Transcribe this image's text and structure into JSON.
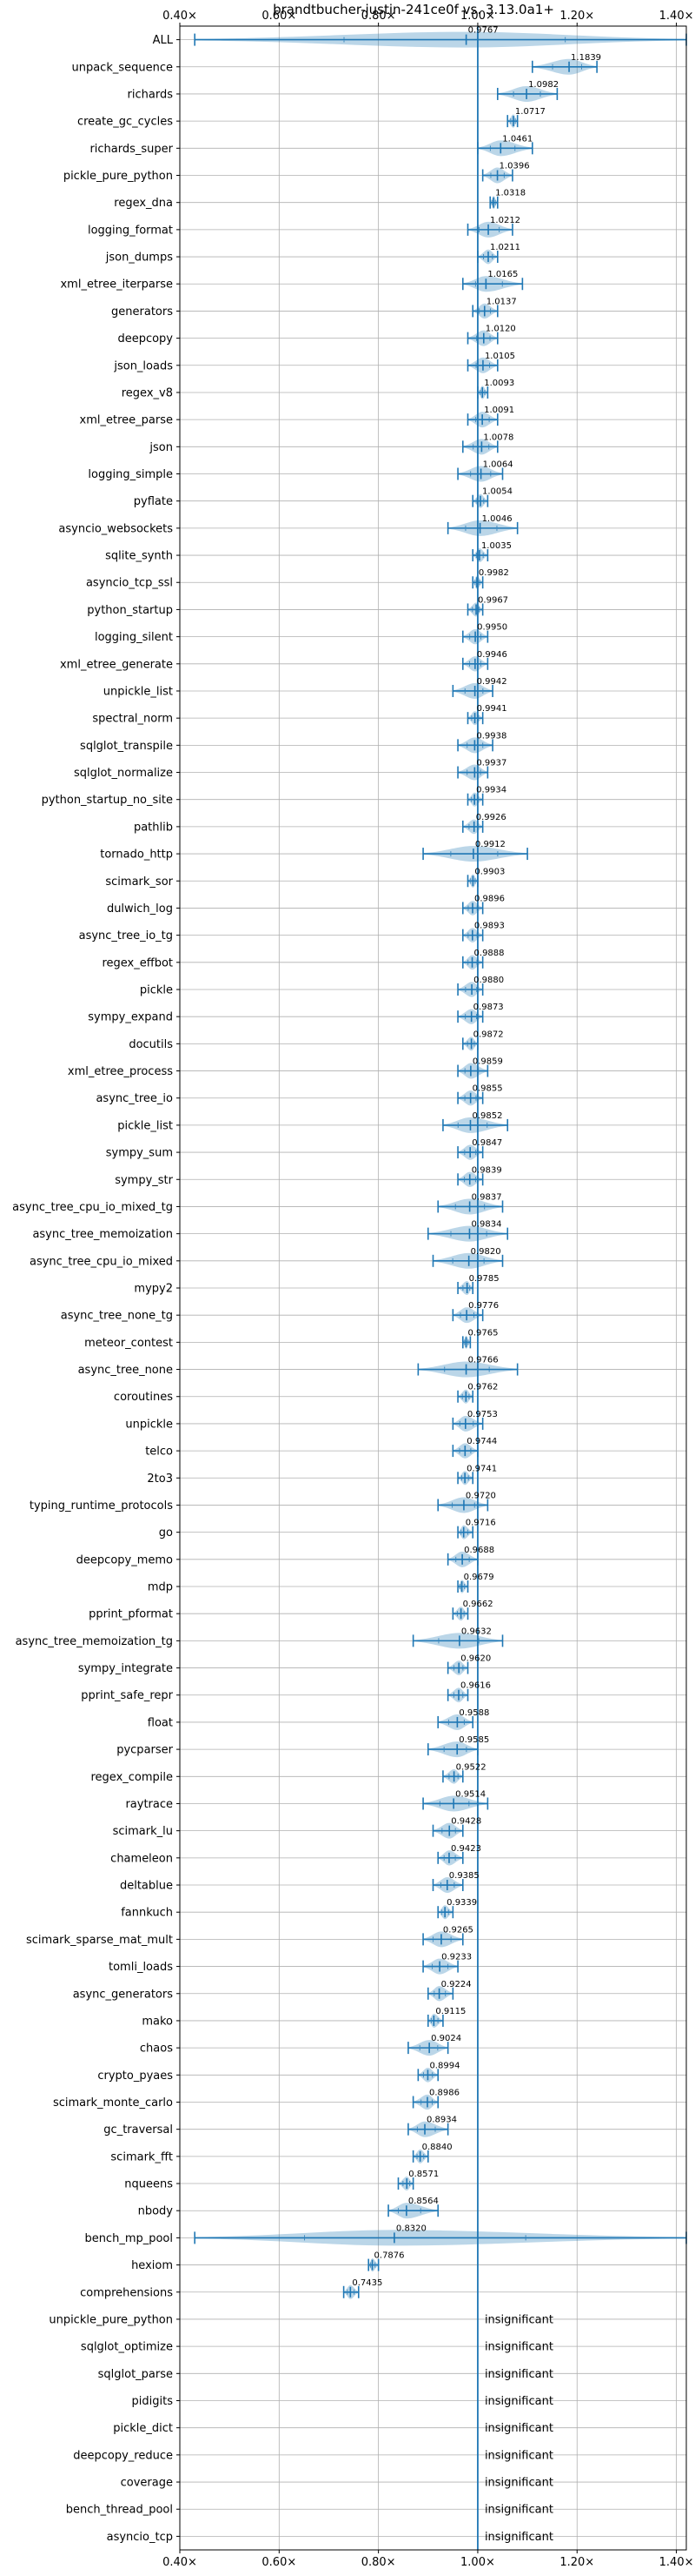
{
  "chart_data": {
    "type": "violin",
    "title": "brandtbucher-justin-241ce0f vs. 3.13.0a1+",
    "xlim": [
      0.4,
      1.42
    ],
    "x_ticks": [
      {
        "value": 0.4,
        "label": "0.40×"
      },
      {
        "value": 0.6,
        "label": "0.60×"
      },
      {
        "value": 0.8,
        "label": "0.80×"
      },
      {
        "value": 1.0,
        "label": "1.00×"
      },
      {
        "value": 1.2,
        "label": "1.20×"
      },
      {
        "value": 1.4,
        "label": "1.40×"
      }
    ],
    "reference_value": 1.0,
    "ref_color": "#1f77b4",
    "insignificant_label": "insignificant",
    "benchmarks": [
      {
        "name": "ALL",
        "value": 0.9767,
        "min": 0.43,
        "max": 1.42,
        "label": "0.9767"
      },
      {
        "name": "unpack_sequence",
        "value": 1.1839,
        "min": 1.11,
        "max": 1.24,
        "label": "1.1839"
      },
      {
        "name": "richards",
        "value": 1.0982,
        "min": 1.04,
        "max": 1.16,
        "label": "1.0982"
      },
      {
        "name": "create_gc_cycles",
        "value": 1.0717,
        "min": 1.06,
        "max": 1.08,
        "label": "1.0717"
      },
      {
        "name": "richards_super",
        "value": 1.0461,
        "min": 1.0,
        "max": 1.11,
        "label": "1.0461"
      },
      {
        "name": "pickle_pure_python",
        "value": 1.0396,
        "min": 1.01,
        "max": 1.07,
        "label": "1.0396"
      },
      {
        "name": "regex_dna",
        "value": 1.0318,
        "min": 1.025,
        "max": 1.04,
        "label": "1.0318"
      },
      {
        "name": "logging_format",
        "value": 1.0212,
        "min": 0.98,
        "max": 1.07,
        "label": "1.0212"
      },
      {
        "name": "json_dumps",
        "value": 1.0211,
        "min": 1.0,
        "max": 1.04,
        "label": "1.0211"
      },
      {
        "name": "xml_etree_iterparse",
        "value": 1.0165,
        "min": 0.97,
        "max": 1.09,
        "label": "1.0165"
      },
      {
        "name": "generators",
        "value": 1.0137,
        "min": 0.99,
        "max": 1.04,
        "label": "1.0137"
      },
      {
        "name": "deepcopy",
        "value": 1.012,
        "min": 0.98,
        "max": 1.04,
        "label": "1.0120"
      },
      {
        "name": "json_loads",
        "value": 1.0105,
        "min": 0.98,
        "max": 1.04,
        "label": "1.0105"
      },
      {
        "name": "regex_v8",
        "value": 1.0093,
        "min": 1.0,
        "max": 1.02,
        "label": "1.0093"
      },
      {
        "name": "xml_etree_parse",
        "value": 1.0091,
        "min": 0.98,
        "max": 1.04,
        "label": "1.0091"
      },
      {
        "name": "json",
        "value": 1.0078,
        "min": 0.97,
        "max": 1.04,
        "label": "1.0078"
      },
      {
        "name": "logging_simple",
        "value": 1.0064,
        "min": 0.96,
        "max": 1.05,
        "label": "1.0064"
      },
      {
        "name": "pyflate",
        "value": 1.0054,
        "min": 0.99,
        "max": 1.02,
        "label": "1.0054"
      },
      {
        "name": "asyncio_websockets",
        "value": 1.0046,
        "min": 0.94,
        "max": 1.08,
        "label": "1.0046"
      },
      {
        "name": "sqlite_synth",
        "value": 1.0035,
        "min": 0.99,
        "max": 1.02,
        "label": "1.0035"
      },
      {
        "name": "asyncio_tcp_ssl",
        "value": 0.9982,
        "min": 0.99,
        "max": 1.01,
        "label": "0.9982"
      },
      {
        "name": "python_startup",
        "value": 0.9967,
        "min": 0.98,
        "max": 1.01,
        "label": "0.9967"
      },
      {
        "name": "logging_silent",
        "value": 0.995,
        "min": 0.97,
        "max": 1.02,
        "label": "0.9950"
      },
      {
        "name": "xml_etree_generate",
        "value": 0.9946,
        "min": 0.97,
        "max": 1.02,
        "label": "0.9946"
      },
      {
        "name": "unpickle_list",
        "value": 0.9942,
        "min": 0.95,
        "max": 1.03,
        "label": "0.9942"
      },
      {
        "name": "spectral_norm",
        "value": 0.9941,
        "min": 0.98,
        "max": 1.01,
        "label": "0.9941"
      },
      {
        "name": "sqlglot_transpile",
        "value": 0.9938,
        "min": 0.96,
        "max": 1.03,
        "label": "0.9938"
      },
      {
        "name": "sqlglot_normalize",
        "value": 0.9937,
        "min": 0.96,
        "max": 1.02,
        "label": "0.9937"
      },
      {
        "name": "python_startup_no_site",
        "value": 0.9934,
        "min": 0.98,
        "max": 1.01,
        "label": "0.9934"
      },
      {
        "name": "pathlib",
        "value": 0.9926,
        "min": 0.97,
        "max": 1.01,
        "label": "0.9926"
      },
      {
        "name": "tornado_http",
        "value": 0.9912,
        "min": 0.89,
        "max": 1.1,
        "label": "0.9912"
      },
      {
        "name": "scimark_sor",
        "value": 0.9903,
        "min": 0.98,
        "max": 1.0,
        "label": "0.9903"
      },
      {
        "name": "dulwich_log",
        "value": 0.9896,
        "min": 0.97,
        "max": 1.01,
        "label": "0.9896"
      },
      {
        "name": "async_tree_io_tg",
        "value": 0.9893,
        "min": 0.97,
        "max": 1.01,
        "label": "0.9893"
      },
      {
        "name": "regex_effbot",
        "value": 0.9888,
        "min": 0.97,
        "max": 1.01,
        "label": "0.9888"
      },
      {
        "name": "pickle",
        "value": 0.988,
        "min": 0.96,
        "max": 1.01,
        "label": "0.9880"
      },
      {
        "name": "sympy_expand",
        "value": 0.9873,
        "min": 0.96,
        "max": 1.01,
        "label": "0.9873"
      },
      {
        "name": "docutils",
        "value": 0.9872,
        "min": 0.97,
        "max": 1.0,
        "label": "0.9872"
      },
      {
        "name": "xml_etree_process",
        "value": 0.9859,
        "min": 0.96,
        "max": 1.02,
        "label": "0.9859"
      },
      {
        "name": "async_tree_io",
        "value": 0.9855,
        "min": 0.96,
        "max": 1.01,
        "label": "0.9855"
      },
      {
        "name": "pickle_list",
        "value": 0.9852,
        "min": 0.93,
        "max": 1.06,
        "label": "0.9852"
      },
      {
        "name": "sympy_sum",
        "value": 0.9847,
        "min": 0.96,
        "max": 1.01,
        "label": "0.9847"
      },
      {
        "name": "sympy_str",
        "value": 0.9839,
        "min": 0.96,
        "max": 1.01,
        "label": "0.9839"
      },
      {
        "name": "async_tree_cpu_io_mixed_tg",
        "value": 0.9837,
        "min": 0.92,
        "max": 1.05,
        "label": "0.9837"
      },
      {
        "name": "async_tree_memoization",
        "value": 0.9834,
        "min": 0.9,
        "max": 1.06,
        "label": "0.9834"
      },
      {
        "name": "async_tree_cpu_io_mixed",
        "value": 0.982,
        "min": 0.91,
        "max": 1.05,
        "label": "0.9820"
      },
      {
        "name": "mypy2",
        "value": 0.9785,
        "min": 0.96,
        "max": 0.99,
        "label": "0.9785"
      },
      {
        "name": "async_tree_none_tg",
        "value": 0.9776,
        "min": 0.95,
        "max": 1.01,
        "label": "0.9776"
      },
      {
        "name": "meteor_contest",
        "value": 0.9765,
        "min": 0.97,
        "max": 0.985,
        "label": "0.9765"
      },
      {
        "name": "async_tree_none",
        "value": 0.9766,
        "min": 0.88,
        "max": 1.08,
        "label": "0.9766"
      },
      {
        "name": "coroutines",
        "value": 0.9762,
        "min": 0.96,
        "max": 0.99,
        "label": "0.9762"
      },
      {
        "name": "unpickle",
        "value": 0.9753,
        "min": 0.95,
        "max": 1.01,
        "label": "0.9753"
      },
      {
        "name": "telco",
        "value": 0.9744,
        "min": 0.95,
        "max": 1.0,
        "label": "0.9744"
      },
      {
        "name": "2to3",
        "value": 0.9741,
        "min": 0.96,
        "max": 0.99,
        "label": "0.9741"
      },
      {
        "name": "typing_runtime_protocols",
        "value": 0.972,
        "min": 0.92,
        "max": 1.02,
        "label": "0.9720"
      },
      {
        "name": "go",
        "value": 0.9716,
        "min": 0.96,
        "max": 0.99,
        "label": "0.9716"
      },
      {
        "name": "deepcopy_memo",
        "value": 0.9688,
        "min": 0.94,
        "max": 1.0,
        "label": "0.9688"
      },
      {
        "name": "mdp",
        "value": 0.9679,
        "min": 0.96,
        "max": 0.98,
        "label": "0.9679"
      },
      {
        "name": "pprint_pformat",
        "value": 0.9662,
        "min": 0.95,
        "max": 0.98,
        "label": "0.9662"
      },
      {
        "name": "async_tree_memoization_tg",
        "value": 0.9632,
        "min": 0.87,
        "max": 1.05,
        "label": "0.9632"
      },
      {
        "name": "sympy_integrate",
        "value": 0.962,
        "min": 0.94,
        "max": 0.98,
        "label": "0.9620"
      },
      {
        "name": "pprint_safe_repr",
        "value": 0.9616,
        "min": 0.94,
        "max": 0.98,
        "label": "0.9616"
      },
      {
        "name": "float",
        "value": 0.9588,
        "min": 0.92,
        "max": 0.99,
        "label": "0.9588"
      },
      {
        "name": "pycparser",
        "value": 0.9585,
        "min": 0.9,
        "max": 1.0,
        "label": "0.9585"
      },
      {
        "name": "regex_compile",
        "value": 0.9522,
        "min": 0.93,
        "max": 0.97,
        "label": "0.9522"
      },
      {
        "name": "raytrace",
        "value": 0.9514,
        "min": 0.89,
        "max": 1.02,
        "label": "0.9514"
      },
      {
        "name": "scimark_lu",
        "value": 0.9428,
        "min": 0.91,
        "max": 0.97,
        "label": "0.9428"
      },
      {
        "name": "chameleon",
        "value": 0.9423,
        "min": 0.92,
        "max": 0.97,
        "label": "0.9423"
      },
      {
        "name": "deltablue",
        "value": 0.9385,
        "min": 0.91,
        "max": 0.97,
        "label": "0.9385"
      },
      {
        "name": "fannkuch",
        "value": 0.9339,
        "min": 0.92,
        "max": 0.95,
        "label": "0.9339"
      },
      {
        "name": "scimark_sparse_mat_mult",
        "value": 0.9265,
        "min": 0.89,
        "max": 0.97,
        "label": "0.9265"
      },
      {
        "name": "tomli_loads",
        "value": 0.9233,
        "min": 0.89,
        "max": 0.96,
        "label": "0.9233"
      },
      {
        "name": "async_generators",
        "value": 0.9224,
        "min": 0.9,
        "max": 0.95,
        "label": "0.9224"
      },
      {
        "name": "mako",
        "value": 0.9115,
        "min": 0.9,
        "max": 0.93,
        "label": "0.9115"
      },
      {
        "name": "chaos",
        "value": 0.9024,
        "min": 0.86,
        "max": 0.94,
        "label": "0.9024"
      },
      {
        "name": "crypto_pyaes",
        "value": 0.8994,
        "min": 0.88,
        "max": 0.92,
        "label": "0.8994"
      },
      {
        "name": "scimark_monte_carlo",
        "value": 0.8986,
        "min": 0.87,
        "max": 0.92,
        "label": "0.8986"
      },
      {
        "name": "gc_traversal",
        "value": 0.8934,
        "min": 0.86,
        "max": 0.94,
        "label": "0.8934"
      },
      {
        "name": "scimark_fft",
        "value": 0.884,
        "min": 0.87,
        "max": 0.9,
        "label": "0.8840"
      },
      {
        "name": "nqueens",
        "value": 0.8571,
        "min": 0.84,
        "max": 0.87,
        "label": "0.8571"
      },
      {
        "name": "nbody",
        "value": 0.8564,
        "min": 0.82,
        "max": 0.92,
        "label": "0.8564"
      },
      {
        "name": "bench_mp_pool",
        "value": 0.832,
        "min": 0.43,
        "max": 1.42,
        "label": "0.8320"
      },
      {
        "name": "hexiom",
        "value": 0.7876,
        "min": 0.78,
        "max": 0.8,
        "label": "0.7876"
      },
      {
        "name": "comprehensions",
        "value": 0.7435,
        "min": 0.73,
        "max": 0.76,
        "label": "0.7435"
      },
      {
        "name": "unpickle_pure_python",
        "insignificant": true
      },
      {
        "name": "sqlglot_optimize",
        "insignificant": true
      },
      {
        "name": "sqlglot_parse",
        "insignificant": true
      },
      {
        "name": "pidigits",
        "insignificant": true
      },
      {
        "name": "pickle_dict",
        "insignificant": true
      },
      {
        "name": "deepcopy_reduce",
        "insignificant": true
      },
      {
        "name": "coverage",
        "insignificant": true
      },
      {
        "name": "bench_thread_pool",
        "insignificant": true
      },
      {
        "name": "asyncio_tcp",
        "insignificant": true
      }
    ]
  }
}
